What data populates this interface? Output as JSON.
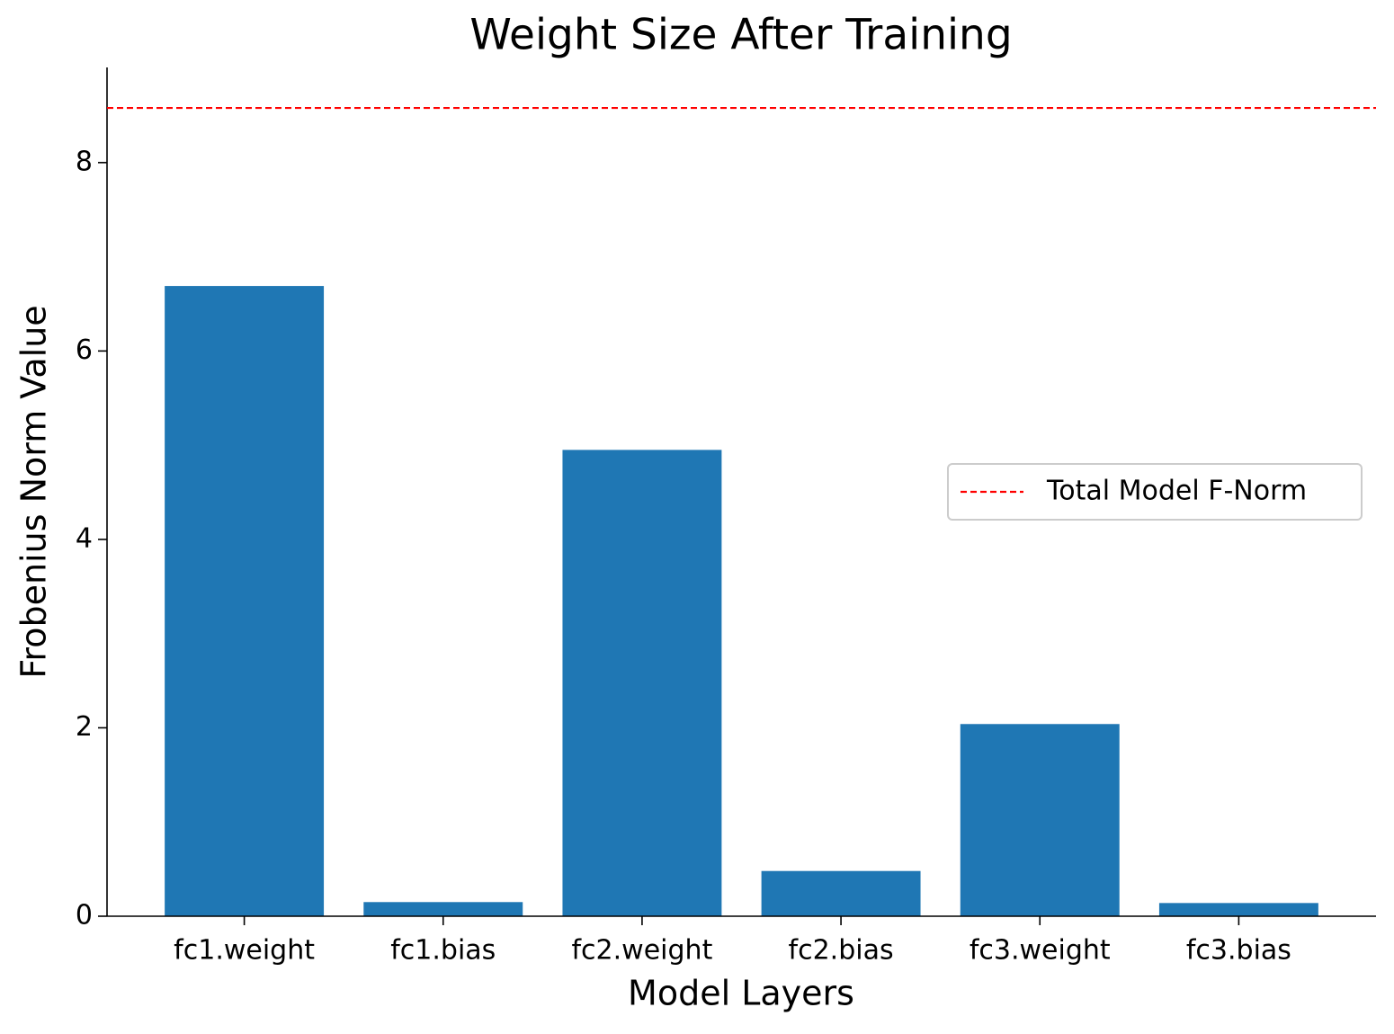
{
  "chart_data": {
    "type": "bar",
    "title": "Weight Size After Training",
    "x_label": "Model Layers",
    "y_label": "Frobenius Norm Value",
    "categories": [
      "fc1.weight",
      "fc1.bias",
      "fc2.weight",
      "fc2.bias",
      "fc3.weight",
      "fc3.bias"
    ],
    "values": [
      6.69,
      0.15,
      4.95,
      0.48,
      2.04,
      0.14
    ],
    "color": "#1f77b4",
    "reference_line": {
      "name": "Total Model F-Norm",
      "value": 8.58,
      "color": "#ff0000",
      "style": "dashed"
    },
    "ylim": [
      0,
      9.01
    ],
    "yticks": [
      0,
      2,
      4,
      6,
      8
    ],
    "grid": false,
    "legend": "center right"
  }
}
